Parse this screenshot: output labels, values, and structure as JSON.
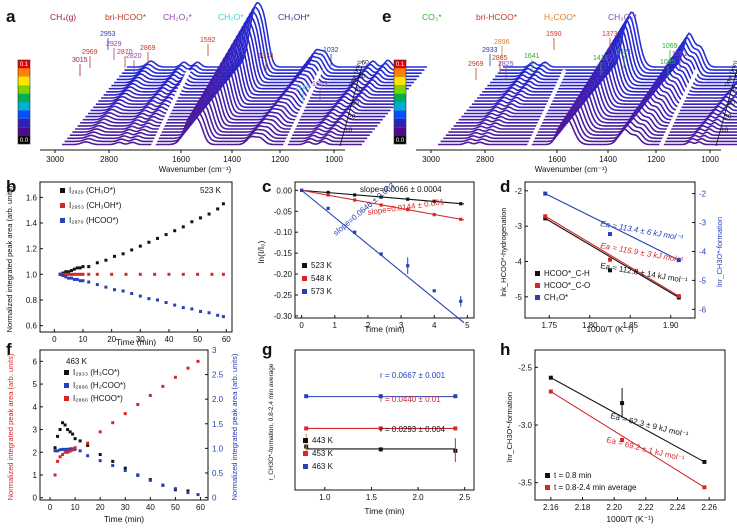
{
  "figure": {
    "panel_letters": [
      "a",
      "b",
      "c",
      "d",
      "e",
      "f",
      "g",
      "h"
    ]
  },
  "chart_data": [
    {
      "id": "a",
      "type": "area",
      "xlabel": "Wavenumber (cm⁻¹)",
      "x_ticks": [
        "3000",
        "2800",
        "1600",
        "1400",
        "1200",
        "1000"
      ],
      "legend": [
        {
          "label": "CH₄(g)",
          "color": "#9b1c3c"
        },
        {
          "label": "bri-HCOO*",
          "color": "#c0392b"
        },
        {
          "label": "CH₂O₂*",
          "color": "#8e44ad"
        },
        {
          "label": "CH₂O*",
          "color": "#3ad1d8"
        },
        {
          "label": "CH₃OH*",
          "color": "#4b2a96"
        }
      ],
      "peak_labels": [
        {
          "label": "3015",
          "color": "#9b1c3c"
        },
        {
          "label": "2969",
          "color": "#c0392b"
        },
        {
          "label": "2953",
          "color": "#2b3bb0"
        },
        {
          "label": "2929",
          "color": "#8e44ad"
        },
        {
          "label": "2870",
          "color": "#c0392b"
        },
        {
          "label": "2820",
          "color": "#8e44ad"
        },
        {
          "label": "2869",
          "color": "#c0392b"
        },
        {
          "label": "1592",
          "color": "#c0392b"
        },
        {
          "label": "1374",
          "color": "#c0392b"
        },
        {
          "label": "1149",
          "color": "#3ad1d8"
        },
        {
          "label": "1053",
          "color": "#8e44ad"
        },
        {
          "label": "1032",
          "color": "#2b3bb0"
        }
      ],
      "time_axis": {
        "label": "Time (min)",
        "ticks": [
          "10",
          "20",
          "30",
          "40",
          "50",
          "60"
        ]
      },
      "colorbar_ticks": [
        "0.1",
        "0.0"
      ]
    },
    {
      "id": "e",
      "type": "area",
      "xlabel": "Wavenumber (cm⁻¹)",
      "x_ticks": [
        "3000",
        "2800",
        "1600",
        "1400",
        "1200",
        "1000"
      ],
      "legend": [
        {
          "label": "CO₃*",
          "color": "#27ae2e"
        },
        {
          "label": "bri-HCOO*",
          "color": "#c0392b"
        },
        {
          "label": "H₂COO*",
          "color": "#e67e22"
        },
        {
          "label": "CH₃O₂*",
          "color": "#8e44ad"
        }
      ],
      "peak_labels": [
        {
          "label": "2933",
          "color": "#2b3bb0"
        },
        {
          "label": "2896",
          "color": "#e67e22"
        },
        {
          "label": "2969",
          "color": "#c0392b"
        },
        {
          "label": "2865",
          "color": "#c0392b"
        },
        {
          "label": "2825",
          "color": "#8e44ad"
        },
        {
          "label": "1641",
          "color": "#27ae2e"
        },
        {
          "label": "1590",
          "color": "#c0392b"
        },
        {
          "label": "1416",
          "color": "#27ae2e"
        },
        {
          "label": "1373",
          "color": "#c0392b"
        },
        {
          "label": "1321",
          "color": "#27ae2e"
        },
        {
          "label": "1069",
          "color": "#27ae2e"
        },
        {
          "label": "1051",
          "color": "#8e44ad"
        },
        {
          "label": "1095",
          "color": "#27ae2e"
        }
      ],
      "time_axis": {
        "label": "Time (min)",
        "ticks": [
          "10",
          "20",
          "30",
          "40",
          "50",
          "60"
        ]
      },
      "colorbar_ticks": [
        "0.1",
        "0.0"
      ]
    },
    {
      "id": "b",
      "type": "scatter",
      "annotation": "523 K",
      "xlabel": "Time (min)",
      "ylabel": "Normalized integrated peak area (arb. units)",
      "xlim": [
        -5,
        62
      ],
      "ylim": [
        0.55,
        1.72
      ],
      "x_ticks": [
        0,
        10,
        20,
        30,
        40,
        50,
        60
      ],
      "series": [
        {
          "name": "I₂₉₂₉ (CH₃O*)",
          "color": "#111111",
          "x": [
            2,
            3,
            4,
            5,
            6,
            7,
            8,
            9,
            10,
            12,
            15,
            18,
            21,
            24,
            27,
            30,
            33,
            36,
            39,
            42,
            45,
            48,
            51,
            54,
            57,
            59
          ],
          "y": [
            1.0,
            1.01,
            1.02,
            1.02,
            1.03,
            1.04,
            1.05,
            1.05,
            1.06,
            1.06,
            1.09,
            1.11,
            1.14,
            1.16,
            1.19,
            1.22,
            1.25,
            1.28,
            1.31,
            1.34,
            1.37,
            1.41,
            1.44,
            1.47,
            1.51,
            1.55
          ]
        },
        {
          "name": "I₂₉₅₃ (CH₃OH*)",
          "color": "#d62728",
          "x": [
            2,
            3,
            4,
            5,
            6,
            7,
            8,
            9,
            10,
            12,
            15,
            20,
            25,
            30,
            35,
            40,
            45,
            50,
            55,
            59
          ],
          "y": [
            1.0,
            1.0,
            1.0,
            1.0,
            1.0,
            1.0,
            1.0,
            1.0,
            1.0,
            1.0,
            1.0,
            1.0,
            1.0,
            1.0,
            1.0,
            1.0,
            1.0,
            1.0,
            1.0,
            1.0
          ]
        },
        {
          "name": "I₂₈₇₀ (HCOO*)",
          "color": "#2540b8",
          "x": [
            2,
            3,
            4,
            5,
            6,
            7,
            8,
            9,
            10,
            12,
            15,
            18,
            21,
            24,
            27,
            30,
            33,
            36,
            39,
            42,
            45,
            48,
            51,
            54,
            57,
            59
          ],
          "y": [
            1.0,
            0.99,
            0.98,
            0.97,
            0.97,
            0.96,
            0.96,
            0.95,
            0.95,
            0.94,
            0.92,
            0.9,
            0.88,
            0.87,
            0.85,
            0.83,
            0.81,
            0.8,
            0.78,
            0.76,
            0.74,
            0.73,
            0.71,
            0.7,
            0.68,
            0.67
          ]
        }
      ]
    },
    {
      "id": "c",
      "type": "scatter",
      "xlabel": "Time (min)",
      "ylabel": "ln(I/I₀)",
      "xlim": [
        -0.2,
        5.2
      ],
      "ylim": [
        -0.305,
        0.02
      ],
      "x_ticks": [
        0,
        1,
        2,
        3,
        4,
        5
      ],
      "y_ticks": [
        0.0,
        -0.05,
        -0.1,
        -0.15,
        -0.2,
        -0.25,
        -0.3
      ],
      "series": [
        {
          "name": "523 K",
          "color": "#111111",
          "slope": -0.0066,
          "x": [
            0,
            0.8,
            1.6,
            2.4,
            3.2,
            4,
            4.8
          ],
          "y": [
            0,
            -0.005,
            -0.011,
            -0.016,
            -0.021,
            -0.026,
            -0.032
          ]
        },
        {
          "name": "548 K",
          "color": "#d62728",
          "slope": -0.0144,
          "x": [
            0,
            0.8,
            1.6,
            2.4,
            3.2,
            4,
            4.8
          ],
          "y": [
            0,
            -0.011,
            -0.023,
            -0.035,
            -0.046,
            -0.058,
            -0.069
          ]
        },
        {
          "name": "573 K",
          "color": "#2540b8",
          "slope": -0.0646,
          "x": [
            0,
            0.8,
            1.6,
            2.4,
            3.2,
            4,
            4.8
          ],
          "y": [
            0,
            -0.043,
            -0.1,
            -0.152,
            -0.18,
            -0.24,
            -0.265
          ]
        }
      ],
      "annotations": [
        "slope=0.0066 ± 0.0004",
        "slope=0.0144 ± 0.001",
        "slope=0.0646 ± 0.003"
      ]
    },
    {
      "id": "d",
      "type": "scatter",
      "xlabel": "1000/T (K⁻¹)",
      "ylabel": "lnk_HCOO*-hydrogenation",
      "ylabel_right": "lnr_CH3O*-formation",
      "xlim": [
        1.72,
        1.93
      ],
      "ylim": [
        -5.6,
        -1.75
      ],
      "ylim_right": [
        -6.3,
        -1.6
      ],
      "x_ticks": [
        1.75,
        1.8,
        1.85,
        1.9
      ],
      "y_ticks": [
        -2,
        -3,
        -4,
        -5
      ],
      "y_ticks_right": [
        -2,
        -3,
        -4,
        -5,
        -6
      ],
      "series": [
        {
          "name": "HCOO*_C-H",
          "color": "#111111",
          "x": [
            1.745,
            1.825,
            1.91
          ],
          "y": [
            -2.78,
            -4.25,
            -5.02
          ]
        },
        {
          "name": "HCOO*_C-O",
          "color": "#d62728",
          "x": [
            1.745,
            1.825,
            1.91
          ],
          "y": [
            -2.72,
            -3.95,
            -4.98
          ]
        },
        {
          "name": "CH₃O*",
          "color": "#2540b8",
          "axis": "right",
          "x": [
            1.745,
            1.825,
            1.91
          ],
          "y": [
            -2.0,
            -3.4,
            -4.3
          ]
        }
      ],
      "annotations": [
        "Ea = 113.4 ± 6 kJ mol⁻¹",
        "Ea = 115.9 ± 3 kJ mol⁻¹",
        "Ea = 112.8 ± 14 kJ mol⁻¹"
      ]
    },
    {
      "id": "f",
      "type": "scatter",
      "annotation": "463 K",
      "xlabel": "Time (min)",
      "ylabel": "Normalized integrated peak area (arb. units)",
      "ylabel_right": "Normalized integrated peak area (arb. units)",
      "xlim": [
        -4,
        63
      ],
      "ylim": [
        -0.1,
        6.5
      ],
      "ylim_right": [
        -0.05,
        3.0
      ],
      "x_ticks": [
        0,
        10,
        20,
        30,
        40,
        50,
        60
      ],
      "y_ticks": [
        0,
        1,
        2,
        3,
        4,
        5,
        6
      ],
      "y_ticks_right": [
        0,
        0.5,
        1.0,
        1.5,
        2.0,
        2.5,
        3
      ],
      "series": [
        {
          "name": "I₂₉₃₃ (H₃CO*)",
          "color": "#111111",
          "x": [
            2,
            3,
            4,
            5,
            6,
            7,
            8,
            9,
            10,
            12,
            15,
            20,
            25,
            30,
            35,
            40,
            45,
            50,
            55
          ],
          "y": [
            2.2,
            2.7,
            3.0,
            3.3,
            3.2,
            3.0,
            2.9,
            2.8,
            2.6,
            2.5,
            2.3,
            1.9,
            1.6,
            1.3,
            1.0,
            0.8,
            0.55,
            0.35,
            0.3
          ]
        },
        {
          "name": "I₂₈₉₆ (H₂COO*)",
          "color": "#2540b8",
          "axis": "right",
          "x": [
            2,
            3,
            4,
            5,
            6,
            7,
            8,
            9,
            10,
            12,
            15,
            20,
            25,
            30,
            35,
            40,
            45,
            50,
            55,
            59
          ],
          "y": [
            0.95,
            0.95,
            0.97,
            0.98,
            0.98,
            0.98,
            0.99,
            0.99,
            0.98,
            0.95,
            0.85,
            0.75,
            0.65,
            0.55,
            0.45,
            0.35,
            0.25,
            0.18,
            0.1,
            0.06
          ]
        },
        {
          "name": "I₂₈₆₆ (HCOO*)",
          "color": "#d62728",
          "x": [
            2,
            3,
            4,
            5,
            6,
            7,
            8,
            9,
            10,
            15,
            20,
            25,
            30,
            35,
            40,
            45,
            50,
            55,
            59
          ],
          "y": [
            1.0,
            1.6,
            1.8,
            1.9,
            2.0,
            2.0,
            2.05,
            2.1,
            2.2,
            2.4,
            2.9,
            3.3,
            3.7,
            4.1,
            4.5,
            4.9,
            5.3,
            5.7,
            6.0
          ]
        }
      ]
    },
    {
      "id": "g",
      "type": "scatter",
      "xlabel": "Time (min)",
      "ylabel": "r_CH3O*-formation, 0.8-2.4 min average",
      "xlim": [
        0.68,
        2.6
      ],
      "ylim": [
        0.0,
        0.1
      ],
      "x_ticks": [
        1.0,
        1.5,
        2.0,
        2.5
      ],
      "series": [
        {
          "name": "443 K",
          "color": "#111111",
          "value": 0.0293,
          "x": [
            0.8,
            1.6,
            2.4
          ],
          "y": [
            0.031,
            0.029,
            0.028
          ]
        },
        {
          "name": "453 K",
          "color": "#d62728",
          "value": 0.044,
          "x": [
            0.8,
            1.6,
            2.4
          ],
          "y": [
            0.044,
            0.044,
            0.044
          ]
        },
        {
          "name": "463 K",
          "color": "#2540b8",
          "value": 0.0667,
          "x": [
            0.8,
            1.6,
            2.4
          ],
          "y": [
            0.067,
            0.067,
            0.067
          ]
        }
      ],
      "annotations": [
        "r = 0.0667 ± 0.001",
        "r = 0.0440 ± 0.01",
        "r = 0.0293 ± 0.004"
      ]
    },
    {
      "id": "h",
      "type": "scatter",
      "xlabel": "1000/T (K⁻¹)",
      "ylabel": "lnr_CH3O*-formation",
      "xlim": [
        2.15,
        2.27
      ],
      "ylim": [
        -3.65,
        -2.35
      ],
      "x_ticks": [
        2.16,
        2.18,
        2.2,
        2.22,
        2.24,
        2.26
      ],
      "y_ticks": [
        -2.5,
        -3.0,
        -3.5
      ],
      "series": [
        {
          "name": "t = 0.8 min",
          "color": "#111111",
          "x": [
            2.16,
            2.205,
            2.257
          ],
          "y": [
            -2.59,
            -2.81,
            -3.32
          ]
        },
        {
          "name": "t = 0.8-2.4 min average",
          "color": "#d62728",
          "x": [
            2.16,
            2.205,
            2.257
          ],
          "y": [
            -2.71,
            -3.13,
            -3.54
          ]
        }
      ],
      "annotations": [
        "Ea = 62.3 ± 9 kJ mol⁻¹",
        "Ea = 69.2 ± 1 kJ mol⁻¹"
      ]
    }
  ]
}
